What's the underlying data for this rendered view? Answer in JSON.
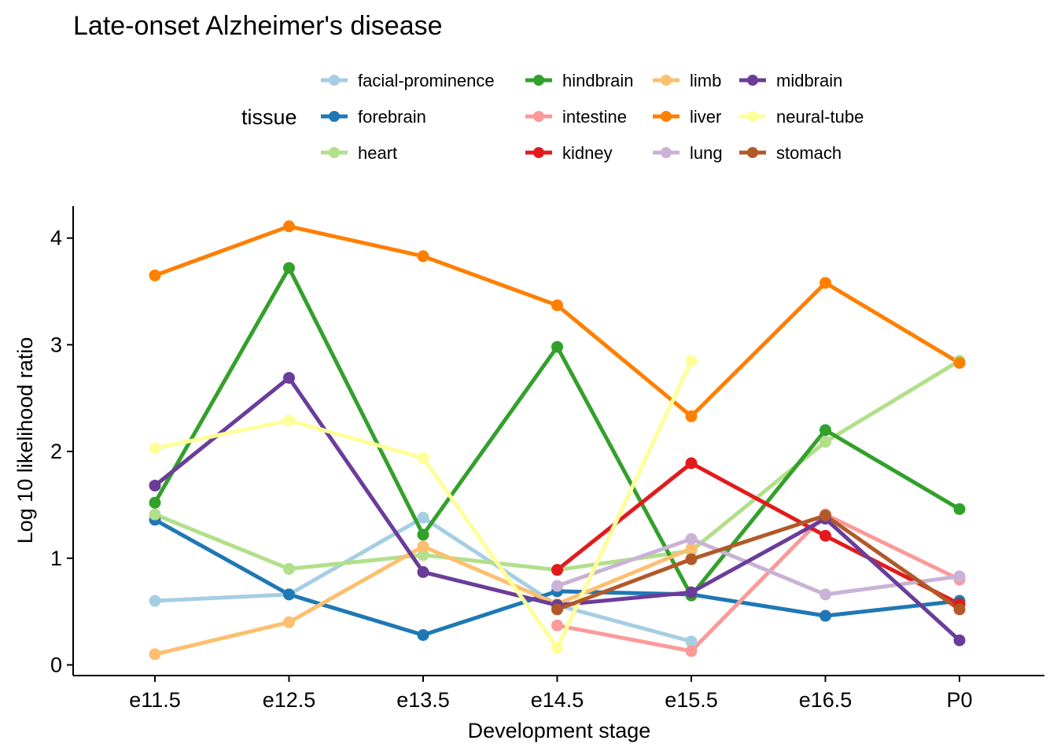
{
  "chart_data": {
    "type": "line",
    "title": "Late-onset Alzheimer's disease",
    "xlabel": "Development stage",
    "ylabel": "Log 10 likelihood ratio",
    "categories": [
      "e11.5",
      "e12.5",
      "e13.5",
      "e14.5",
      "e15.5",
      "e16.5",
      "P0"
    ],
    "ylim": [
      -0.1,
      4.3
    ],
    "yticks": [
      0,
      1,
      2,
      3,
      4
    ],
    "grid": false,
    "legend": {
      "title": "tissue",
      "position": "top"
    },
    "series": [
      {
        "name": "facial-prominence",
        "color": "#a6cee3",
        "values": [
          0.6,
          0.66,
          1.38,
          0.56,
          0.22,
          null,
          null
        ]
      },
      {
        "name": "forebrain",
        "color": "#1f78b4",
        "values": [
          1.36,
          0.66,
          0.28,
          0.69,
          0.66,
          0.46,
          0.6
        ]
      },
      {
        "name": "heart",
        "color": "#b2df8a",
        "values": [
          1.41,
          0.9,
          1.03,
          0.89,
          1.07,
          2.09,
          2.85
        ]
      },
      {
        "name": "hindbrain",
        "color": "#33a02c",
        "values": [
          1.52,
          3.72,
          1.22,
          2.98,
          0.65,
          2.2,
          1.46
        ]
      },
      {
        "name": "intestine",
        "color": "#fb9a99",
        "values": [
          null,
          null,
          null,
          0.37,
          0.13,
          1.41,
          0.8
        ]
      },
      {
        "name": "kidney",
        "color": "#e31a1c",
        "values": [
          null,
          null,
          null,
          0.89,
          1.89,
          1.21,
          0.57
        ]
      },
      {
        "name": "limb",
        "color": "#fdbf6f",
        "values": [
          0.1,
          0.4,
          1.11,
          0.57,
          1.09,
          null,
          null
        ]
      },
      {
        "name": "liver",
        "color": "#ff7f00",
        "values": [
          3.65,
          4.11,
          3.83,
          3.37,
          2.33,
          3.58,
          2.83
        ]
      },
      {
        "name": "lung",
        "color": "#cab2d6",
        "values": [
          null,
          null,
          null,
          0.74,
          1.18,
          0.66,
          0.83
        ]
      },
      {
        "name": "midbrain",
        "color": "#6a3d9a",
        "values": [
          1.68,
          2.69,
          0.87,
          0.56,
          0.68,
          1.37,
          0.23
        ]
      },
      {
        "name": "neural-tube",
        "color": "#ffff99",
        "values": [
          2.03,
          2.29,
          1.94,
          0.16,
          2.85,
          null,
          null
        ]
      },
      {
        "name": "stomach",
        "color": "#b15928",
        "values": [
          null,
          null,
          null,
          0.52,
          0.99,
          1.4,
          0.52
        ]
      }
    ]
  }
}
